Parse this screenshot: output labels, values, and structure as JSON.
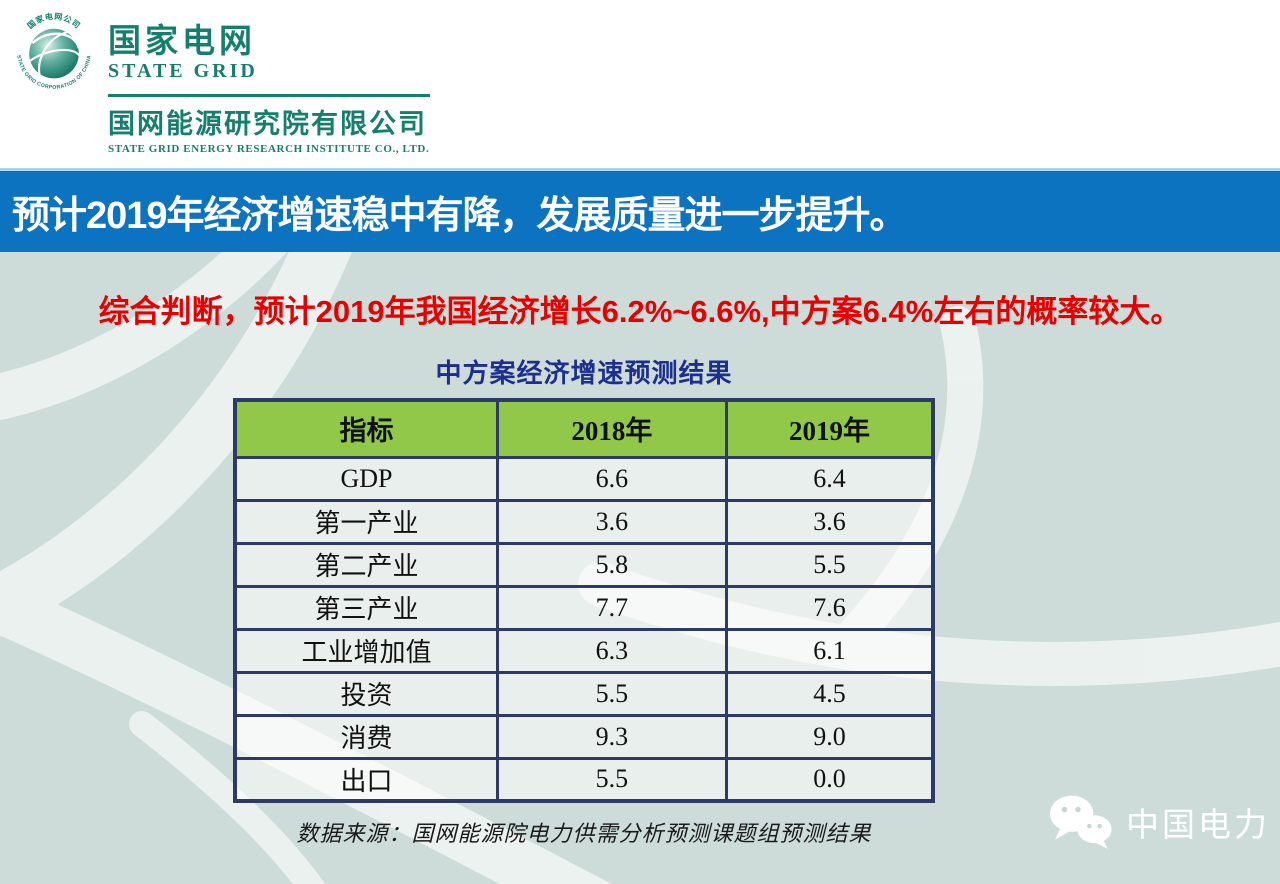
{
  "theme": {
    "page_bg": "#cddcd8",
    "watermark": "#eef4f2",
    "top_band_bg": "#ffffff",
    "brand_green": "#157f6d",
    "header_bar_bg": "#0b73bf",
    "header_text": "#ffffff",
    "highlight_red": "#e80000",
    "table_title_navy": "#1c2f8f",
    "table_header_green": "#92c84a",
    "table_border_navy": "#2d3a68",
    "cell_text": "#111111"
  },
  "logo": {
    "emblem_zh": "国家电网公司",
    "emblem_en": "STATE GRID CORPORATION OF CHINA",
    "zh_name": "国家电网",
    "en_name": "STATE GRID",
    "subsidiary_zh": "国网能源研究院有限公司",
    "subsidiary_en": "STATE GRID ENERGY RESEARCH INSTITUTE CO., LTD."
  },
  "header": {
    "title": "预计2019年经济增速稳中有降，发展质量进一步提升。"
  },
  "highlight": {
    "text": "综合判断，预计2019年我国经济增长6.2%~6.6%,中方案6.4%左右的概率较大。"
  },
  "table": {
    "title": "中方案经济增速预测结果",
    "columns": [
      "指标",
      "2018年",
      "2019年"
    ],
    "rows": [
      {
        "indicator": "GDP",
        "y2018": "6.6",
        "y2019": "6.4"
      },
      {
        "indicator": "第一产业",
        "y2018": "3.6",
        "y2019": "3.6"
      },
      {
        "indicator": "第二产业",
        "y2018": "5.8",
        "y2019": "5.5"
      },
      {
        "indicator": "第三产业",
        "y2018": "7.7",
        "y2019": "7.6"
      },
      {
        "indicator": "工业增加值",
        "y2018": "6.3",
        "y2019": "6.1"
      },
      {
        "indicator": "投资",
        "y2018": "5.5",
        "y2019": "4.5"
      },
      {
        "indicator": "消费",
        "y2018": "9.3",
        "y2019": "9.0"
      },
      {
        "indicator": "出口",
        "y2018": "5.5",
        "y2019": "0.0"
      }
    ]
  },
  "footer": {
    "source": "数据来源：国网能源院电力供需分析预测课题组预测结果"
  },
  "wechat": {
    "label": "中国电力"
  }
}
